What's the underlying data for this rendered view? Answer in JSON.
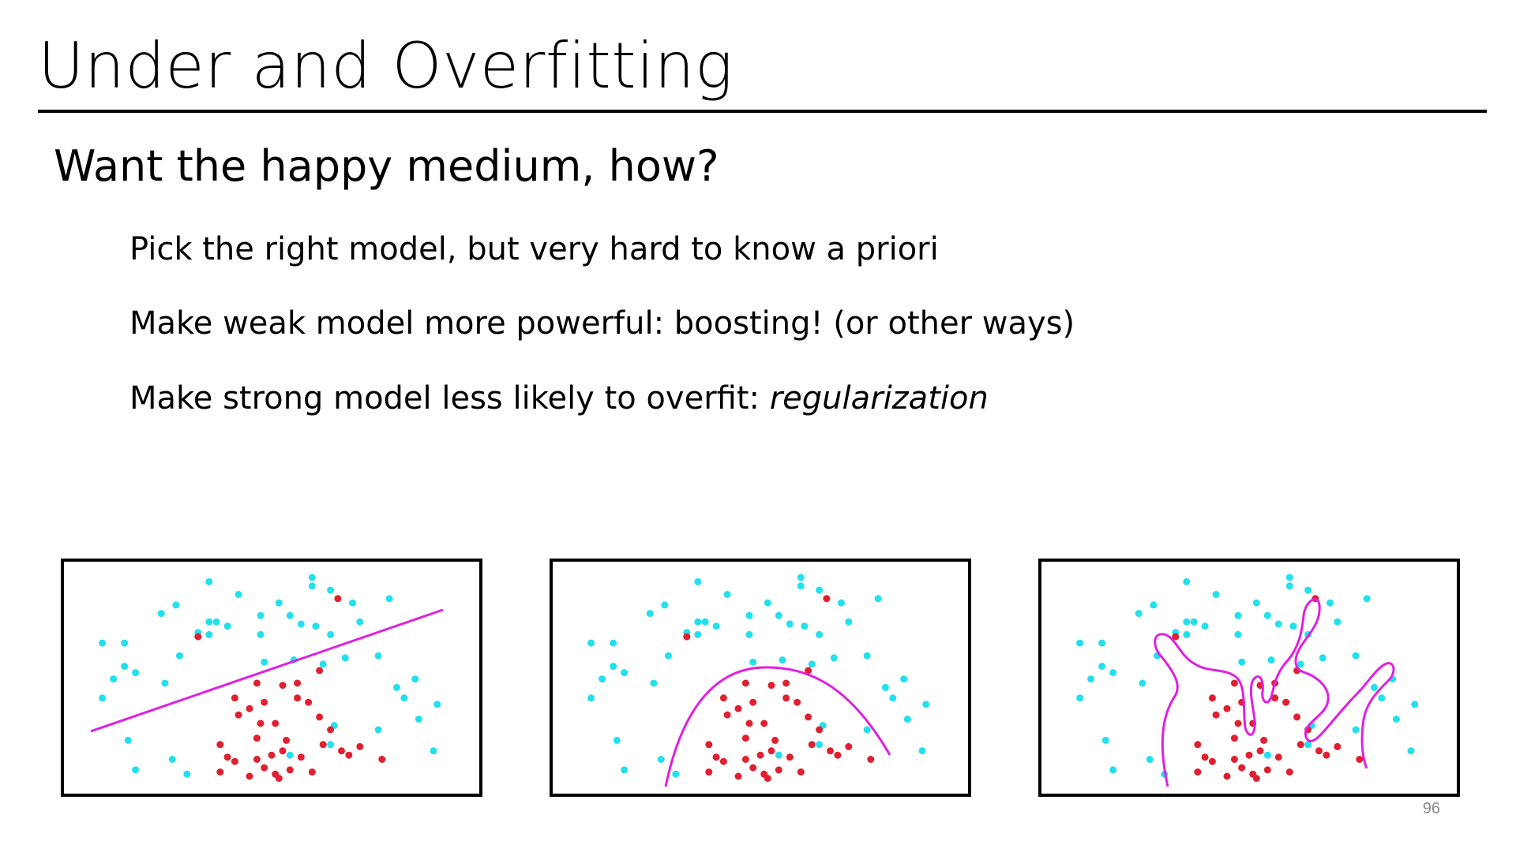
{
  "slide": {
    "title": "Under and Overfitting",
    "heading": "Want the happy medium, how?",
    "bullets": {
      "b1": "Pick the right model, but very hard to know a priori",
      "b2": "Make weak model more powerful: boosting! (or other ways)",
      "b3_plain": "Make strong model less likely to overfit: ",
      "b3_italic": "regularization"
    },
    "page_number": "96"
  },
  "colors": {
    "positive": "#22e0ee",
    "negative": "#e02030",
    "boundary": "#e020e0"
  },
  "chart_data": {
    "type": "scatter",
    "panels": 3,
    "decision_boundaries": [
      "linear",
      "curved",
      "overfit"
    ],
    "xlim": [
      0,
      100
    ],
    "ylim": [
      0,
      100
    ],
    "cyan": [
      [
        33,
        95
      ],
      [
        41,
        89
      ],
      [
        61,
        97
      ],
      [
        66,
        91
      ],
      [
        24,
        84
      ],
      [
        33,
        76
      ],
      [
        35,
        76
      ],
      [
        30,
        71
      ],
      [
        38,
        74
      ],
      [
        47,
        79
      ],
      [
        52,
        85
      ],
      [
        55,
        79
      ],
      [
        58,
        75
      ],
      [
        62,
        74
      ],
      [
        61,
        93
      ],
      [
        66,
        70
      ],
      [
        72,
        85
      ],
      [
        74,
        76
      ],
      [
        82,
        87
      ],
      [
        10,
        66
      ],
      [
        4,
        66
      ],
      [
        10,
        55
      ],
      [
        13,
        52
      ],
      [
        7,
        49
      ],
      [
        4,
        40
      ],
      [
        21,
        47
      ],
      [
        20,
        80
      ],
      [
        25,
        60
      ],
      [
        33,
        70
      ],
      [
        47,
        70
      ],
      [
        48,
        57
      ],
      [
        70,
        59
      ],
      [
        56,
        58
      ],
      [
        64,
        56
      ],
      [
        79,
        60
      ],
      [
        84,
        45
      ],
      [
        89,
        49
      ],
      [
        86,
        40
      ],
      [
        90,
        30
      ],
      [
        94,
        15
      ],
      [
        95,
        37
      ],
      [
        79,
        25
      ],
      [
        67,
        27
      ],
      [
        66,
        18
      ],
      [
        11,
        20
      ],
      [
        23,
        11
      ],
      [
        13,
        6
      ],
      [
        27,
        4
      ],
      [
        55,
        13
      ]
    ],
    "red": [
      [
        68,
        87
      ],
      [
        30,
        69
      ],
      [
        46,
        47
      ],
      [
        53,
        46
      ],
      [
        57,
        47
      ],
      [
        63,
        53
      ],
      [
        57,
        40
      ],
      [
        60,
        38
      ],
      [
        48,
        38
      ],
      [
        44,
        35
      ],
      [
        41,
        32
      ],
      [
        47,
        28
      ],
      [
        51,
        28
      ],
      [
        63,
        31
      ],
      [
        66,
        25
      ],
      [
        64,
        18
      ],
      [
        69,
        15
      ],
      [
        74,
        17
      ],
      [
        71,
        13
      ],
      [
        54,
        20
      ],
      [
        46,
        21
      ],
      [
        36,
        18
      ],
      [
        38,
        12
      ],
      [
        40,
        10
      ],
      [
        46,
        11
      ],
      [
        50,
        13
      ],
      [
        53,
        15
      ],
      [
        58,
        12
      ],
      [
        48,
        7
      ],
      [
        51,
        4
      ],
      [
        61,
        5
      ],
      [
        44,
        3
      ],
      [
        36,
        5
      ],
      [
        80,
        11
      ],
      [
        52,
        2
      ],
      [
        55,
        6
      ],
      [
        40,
        40
      ]
    ]
  }
}
